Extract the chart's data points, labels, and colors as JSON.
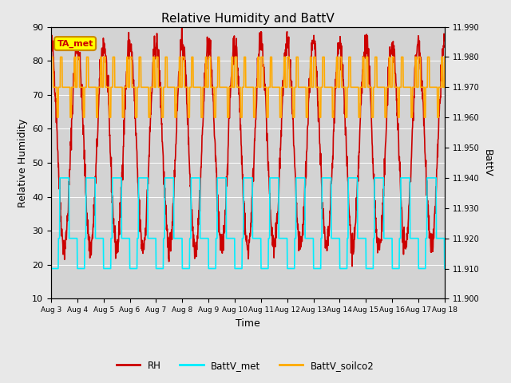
{
  "title": "Relative Humidity and BattV",
  "xlabel": "Time",
  "ylabel_left": "Relative Humidity",
  "ylabel_right": "BattV",
  "annotation": "TA_met",
  "fig_facecolor": "#e8e8e8",
  "plot_bg_color": "#d3d3d3",
  "ylim_left": [
    10,
    90
  ],
  "ylim_right": [
    11.9,
    11.99
  ],
  "yticks_left": [
    10,
    20,
    30,
    40,
    50,
    60,
    70,
    80,
    90
  ],
  "yticks_right": [
    11.9,
    11.91,
    11.92,
    11.93,
    11.94,
    11.95,
    11.96,
    11.97,
    11.98,
    11.99
  ],
  "xtick_labels": [
    "Aug 3",
    "Aug 4",
    "Aug 5",
    "Aug 6",
    "Aug 7",
    "Aug 8",
    "Aug 9",
    "Aug 10",
    "Aug 11",
    "Aug 12",
    "Aug 13",
    "Aug 14",
    "Aug 15",
    "Aug 16",
    "Aug 17",
    "Aug 18"
  ],
  "rh_color": "#cc0000",
  "battv_met_color": "#00eeff",
  "battv_soilco2_color": "#ffaa00",
  "legend_labels": [
    "RH",
    "BattV_met",
    "BattV_soilco2"
  ],
  "rh_linewidth": 1.2,
  "battv_linewidth": 1.2,
  "num_days": 15,
  "seed": 42,
  "annotation_facecolor": "#ffff00",
  "annotation_edgecolor": "#cc8800",
  "annotation_fontcolor": "#cc0000"
}
